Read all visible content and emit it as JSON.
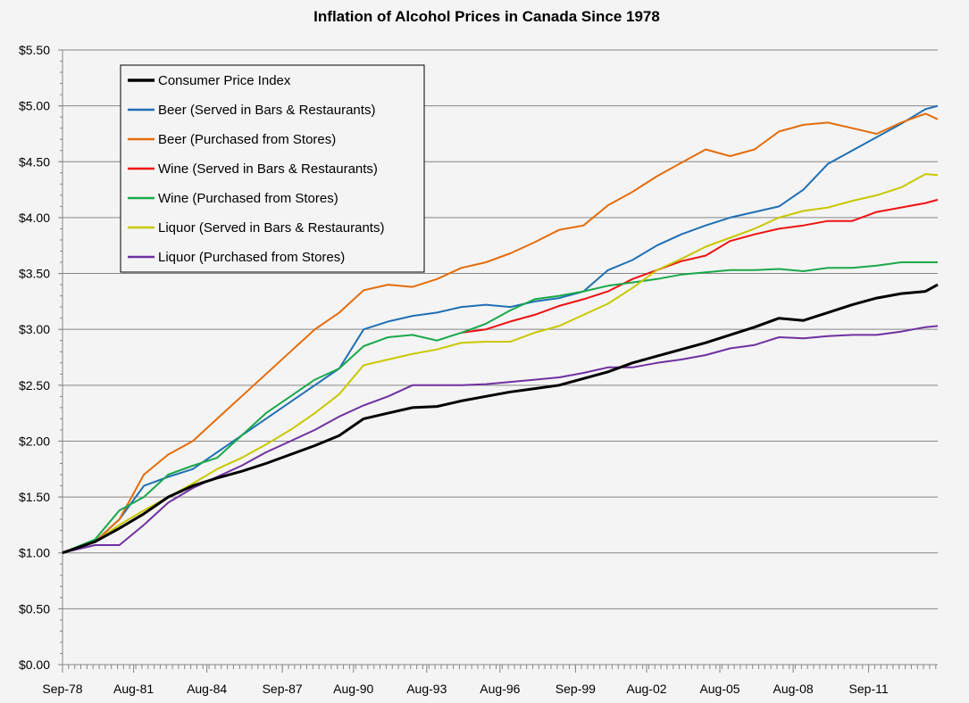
{
  "chart_data": {
    "type": "line",
    "title": "Inflation of Alcohol Prices in Canada Since 1978",
    "xlabel": "",
    "ylabel": "",
    "ylim": [
      0,
      5.5
    ],
    "xlim": [
      1978.67,
      2014.5
    ],
    "grid": "horizontal",
    "legend_position": "top-left",
    "y_ticks": [
      "$0.00",
      "$0.50",
      "$1.00",
      "$1.50",
      "$2.00",
      "$2.50",
      "$3.00",
      "$3.50",
      "$4.00",
      "$4.50",
      "$5.00",
      "$5.50"
    ],
    "y_tick_values": [
      0,
      0.5,
      1,
      1.5,
      2,
      2.5,
      3,
      3.5,
      4,
      4.5,
      5,
      5.5
    ],
    "x_ticks": [
      "Sep-78",
      "Aug-81",
      "Aug-84",
      "Sep-87",
      "Aug-90",
      "Aug-93",
      "Aug-96",
      "Sep-99",
      "Aug-02",
      "Aug-05",
      "Aug-08",
      "Sep-11"
    ],
    "x_tick_values": [
      1978.67,
      1981.58,
      1984.58,
      1987.67,
      1990.58,
      1993.58,
      1996.58,
      1999.67,
      2002.58,
      2005.58,
      2008.58,
      2011.67
    ],
    "x": [
      1978.67,
      1980,
      1981,
      1982,
      1983,
      1984,
      1985,
      1986,
      1987,
      1988,
      1989,
      1990,
      1991,
      1992,
      1993,
      1994,
      1995,
      1996,
      1997,
      1998,
      1999,
      2000,
      2001,
      2002,
      2003,
      2004,
      2005,
      2006,
      2007,
      2008,
      2009,
      2010,
      2011,
      2012,
      2013,
      2014,
      2014.5
    ],
    "series": [
      {
        "name": "Consumer Price Index",
        "color": "#000000",
        "width": 3,
        "values": [
          1.0,
          1.1,
          1.22,
          1.35,
          1.5,
          1.6,
          1.67,
          1.73,
          1.8,
          1.88,
          1.96,
          2.05,
          2.2,
          2.25,
          2.3,
          2.31,
          2.36,
          2.4,
          2.44,
          2.47,
          2.5,
          2.56,
          2.62,
          2.7,
          2.76,
          2.82,
          2.88,
          2.95,
          3.02,
          3.1,
          3.08,
          3.15,
          3.22,
          3.28,
          3.32,
          3.34,
          3.4
        ]
      },
      {
        "name": "Beer (Served in Bars & Restaurants)",
        "color": "#1f6fb4",
        "width": 2,
        "values": [
          1.0,
          1.1,
          1.3,
          1.6,
          1.68,
          1.75,
          1.9,
          2.05,
          2.2,
          2.35,
          2.5,
          2.65,
          3.0,
          3.07,
          3.12,
          3.15,
          3.2,
          3.22,
          3.2,
          3.25,
          3.28,
          3.34,
          3.53,
          3.62,
          3.75,
          3.85,
          3.93,
          4.0,
          4.05,
          4.1,
          4.25,
          4.48,
          4.6,
          4.72,
          4.84,
          4.97,
          5.0
        ]
      },
      {
        "name": "Beer (Purchased from Stores)",
        "color": "#e46c0a",
        "width": 2,
        "values": [
          1.0,
          1.1,
          1.3,
          1.7,
          1.88,
          2.0,
          2.2,
          2.4,
          2.6,
          2.8,
          3.0,
          3.15,
          3.35,
          3.4,
          3.38,
          3.45,
          3.55,
          3.6,
          3.68,
          3.78,
          3.89,
          3.93,
          4.11,
          4.23,
          4.37,
          4.49,
          4.61,
          4.55,
          4.61,
          4.77,
          4.83,
          4.85,
          4.8,
          4.75,
          4.85,
          4.93,
          4.88
        ]
      },
      {
        "name": "Wine (Served in Bars & Restaurants)",
        "color": "#ee1111",
        "width": 2,
        "values": [
          null,
          null,
          null,
          null,
          null,
          null,
          null,
          null,
          null,
          null,
          null,
          null,
          null,
          null,
          null,
          null,
          2.97,
          3.0,
          3.07,
          3.13,
          3.21,
          3.27,
          3.34,
          3.45,
          3.53,
          3.61,
          3.66,
          3.79,
          3.85,
          3.9,
          3.93,
          3.97,
          3.97,
          4.05,
          4.09,
          4.13,
          4.16
        ]
      },
      {
        "name": "Wine (Purchased from Stores)",
        "color": "#1aa84a",
        "width": 2,
        "values": [
          1.0,
          1.12,
          1.38,
          1.5,
          1.7,
          1.78,
          1.85,
          2.05,
          2.25,
          2.4,
          2.55,
          2.65,
          2.85,
          2.93,
          2.95,
          2.9,
          2.97,
          3.05,
          3.17,
          3.27,
          3.3,
          3.34,
          3.39,
          3.42,
          3.45,
          3.49,
          3.51,
          3.53,
          3.53,
          3.54,
          3.52,
          3.55,
          3.55,
          3.57,
          3.6,
          3.6,
          3.6
        ]
      },
      {
        "name": "Liquor (Served in Bars & Restaurants)",
        "color": "#c8c800",
        "width": 2,
        "values": [
          1.0,
          1.1,
          1.25,
          1.38,
          1.5,
          1.62,
          1.75,
          1.85,
          1.97,
          2.1,
          2.25,
          2.42,
          2.68,
          2.73,
          2.78,
          2.82,
          2.88,
          2.89,
          2.89,
          2.97,
          3.03,
          3.13,
          3.23,
          3.37,
          3.53,
          3.63,
          3.74,
          3.82,
          3.9,
          4.0,
          4.06,
          4.09,
          4.15,
          4.2,
          4.27,
          4.39,
          4.38
        ]
      },
      {
        "name": "Liquor (Purchased from Stores)",
        "color": "#7030a0",
        "width": 2,
        "values": [
          1.0,
          1.07,
          1.07,
          1.25,
          1.45,
          1.58,
          1.68,
          1.78,
          1.9,
          2.0,
          2.1,
          2.22,
          2.32,
          2.4,
          2.5,
          2.5,
          2.5,
          2.51,
          2.53,
          2.55,
          2.57,
          2.61,
          2.66,
          2.66,
          2.7,
          2.73,
          2.77,
          2.83,
          2.86,
          2.93,
          2.92,
          2.94,
          2.95,
          2.95,
          2.98,
          3.02,
          3.03
        ]
      }
    ]
  }
}
